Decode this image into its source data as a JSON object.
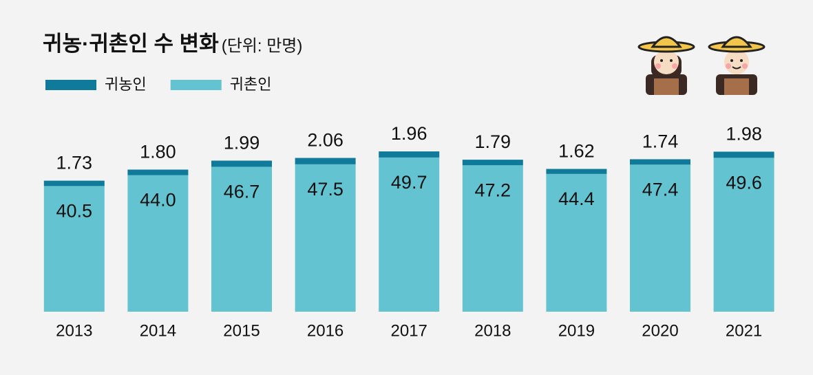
{
  "chart_data": {
    "type": "stacked_bar",
    "title": "귀농·귀촌인 수 변화",
    "subtitle": "(단위: 만명)",
    "categories": [
      "2013",
      "2014",
      "2015",
      "2016",
      "2017",
      "2018",
      "2019",
      "2020",
      "2021"
    ],
    "series": [
      {
        "name": "귀촌인",
        "color": "#63c3d1",
        "values": [
          40.5,
          44.0,
          46.7,
          47.5,
          49.7,
          47.2,
          44.4,
          47.4,
          49.6
        ],
        "value_labels": [
          "40.5",
          "44.0",
          "46.7",
          "47.5",
          "49.7",
          "47.2",
          "44.4",
          "47.4",
          "49.6"
        ]
      },
      {
        "name": "귀농인",
        "color": "#0f7a9a",
        "values": [
          1.73,
          1.8,
          1.99,
          2.06,
          1.96,
          1.79,
          1.62,
          1.74,
          1.98
        ],
        "value_labels": [
          "1.73",
          "1.80",
          "1.99",
          "2.06",
          "1.96",
          "1.79",
          "1.62",
          "1.74",
          "1.98"
        ]
      }
    ],
    "ylim": [
      0,
      55
    ],
    "legend": "top-left"
  }
}
